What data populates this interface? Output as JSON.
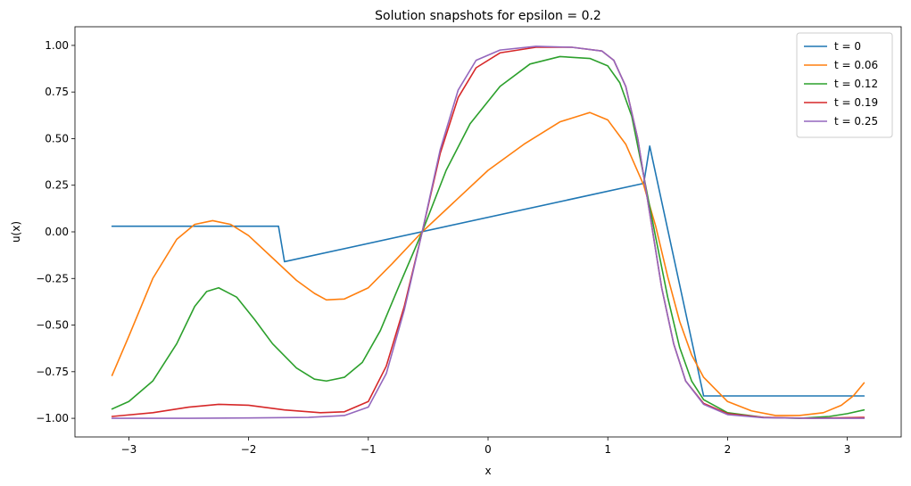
{
  "chart_data": {
    "type": "line",
    "title": "Solution snapshots for epsilon = 0.2",
    "xlabel": "x",
    "ylabel": "u(x)",
    "xlim": [
      -3.45,
      3.45
    ],
    "ylim": [
      -1.1,
      1.1
    ],
    "xticks": [
      -3,
      -2,
      -1,
      0,
      1,
      2,
      3
    ],
    "xtick_labels": [
      "−3",
      "−2",
      "−1",
      "0",
      "1",
      "2",
      "3"
    ],
    "yticks": [
      -1.0,
      -0.75,
      -0.5,
      -0.25,
      0.0,
      0.25,
      0.5,
      0.75,
      1.0
    ],
    "ytick_labels": [
      "−1.00",
      "−0.75",
      "−0.50",
      "−0.25",
      "0.00",
      "0.25",
      "0.50",
      "0.75",
      "1.00"
    ],
    "grid": false,
    "legend_position": "top-right",
    "series": [
      {
        "name": "t = 0",
        "color": "#1f77b4",
        "points": [
          [
            -3.14,
            0.03
          ],
          [
            -1.75,
            0.03
          ],
          [
            -1.7,
            -0.16
          ],
          [
            1.3,
            0.26
          ],
          [
            1.35,
            0.46
          ],
          [
            1.8,
            -0.88
          ],
          [
            3.14,
            -0.88
          ]
        ]
      },
      {
        "name": "t = 0.06",
        "color": "#ff7f0e",
        "points": [
          [
            -3.14,
            -0.77
          ],
          [
            -3.0,
            -0.56
          ],
          [
            -2.8,
            -0.25
          ],
          [
            -2.6,
            -0.04
          ],
          [
            -2.45,
            0.04
          ],
          [
            -2.3,
            0.06
          ],
          [
            -2.15,
            0.04
          ],
          [
            -2.0,
            -0.02
          ],
          [
            -1.8,
            -0.14
          ],
          [
            -1.6,
            -0.26
          ],
          [
            -1.45,
            -0.33
          ],
          [
            -1.35,
            -0.365
          ],
          [
            -1.2,
            -0.36
          ],
          [
            -1.0,
            -0.3
          ],
          [
            -0.8,
            -0.17
          ],
          [
            -0.55,
            0.0
          ],
          [
            -0.3,
            0.15
          ],
          [
            0.0,
            0.33
          ],
          [
            0.3,
            0.47
          ],
          [
            0.6,
            0.59
          ],
          [
            0.85,
            0.64
          ],
          [
            1.0,
            0.6
          ],
          [
            1.15,
            0.47
          ],
          [
            1.3,
            0.25
          ],
          [
            1.4,
            0.03
          ],
          [
            1.5,
            -0.24
          ],
          [
            1.6,
            -0.48
          ],
          [
            1.7,
            -0.66
          ],
          [
            1.8,
            -0.78
          ],
          [
            2.0,
            -0.91
          ],
          [
            2.2,
            -0.96
          ],
          [
            2.4,
            -0.985
          ],
          [
            2.6,
            -0.985
          ],
          [
            2.8,
            -0.97
          ],
          [
            2.95,
            -0.93
          ],
          [
            3.05,
            -0.88
          ],
          [
            3.14,
            -0.81
          ]
        ]
      },
      {
        "name": "t = 0.12",
        "color": "#2ca02c",
        "points": [
          [
            -3.14,
            -0.95
          ],
          [
            -3.0,
            -0.91
          ],
          [
            -2.8,
            -0.8
          ],
          [
            -2.6,
            -0.6
          ],
          [
            -2.45,
            -0.4
          ],
          [
            -2.35,
            -0.32
          ],
          [
            -2.25,
            -0.3
          ],
          [
            -2.1,
            -0.35
          ],
          [
            -1.95,
            -0.47
          ],
          [
            -1.8,
            -0.6
          ],
          [
            -1.6,
            -0.73
          ],
          [
            -1.45,
            -0.79
          ],
          [
            -1.35,
            -0.8
          ],
          [
            -1.2,
            -0.78
          ],
          [
            -1.05,
            -0.7
          ],
          [
            -0.9,
            -0.53
          ],
          [
            -0.75,
            -0.3
          ],
          [
            -0.55,
            0.0
          ],
          [
            -0.35,
            0.33
          ],
          [
            -0.15,
            0.58
          ],
          [
            0.1,
            0.78
          ],
          [
            0.35,
            0.9
          ],
          [
            0.6,
            0.94
          ],
          [
            0.85,
            0.93
          ],
          [
            1.0,
            0.89
          ],
          [
            1.1,
            0.8
          ],
          [
            1.2,
            0.62
          ],
          [
            1.3,
            0.3
          ],
          [
            1.4,
            -0.03
          ],
          [
            1.5,
            -0.35
          ],
          [
            1.6,
            -0.62
          ],
          [
            1.7,
            -0.8
          ],
          [
            1.8,
            -0.9
          ],
          [
            2.0,
            -0.97
          ],
          [
            2.3,
            -0.995
          ],
          [
            2.6,
            -1.0
          ],
          [
            2.85,
            -0.99
          ],
          [
            3.0,
            -0.975
          ],
          [
            3.14,
            -0.955
          ]
        ]
      },
      {
        "name": "t = 0.19",
        "color": "#d62728",
        "points": [
          [
            -3.14,
            -0.99
          ],
          [
            -2.8,
            -0.97
          ],
          [
            -2.5,
            -0.94
          ],
          [
            -2.25,
            -0.925
          ],
          [
            -2.0,
            -0.93
          ],
          [
            -1.7,
            -0.955
          ],
          [
            -1.4,
            -0.97
          ],
          [
            -1.2,
            -0.965
          ],
          [
            -1.0,
            -0.91
          ],
          [
            -0.85,
            -0.72
          ],
          [
            -0.7,
            -0.4
          ],
          [
            -0.55,
            0.0
          ],
          [
            -0.4,
            0.42
          ],
          [
            -0.25,
            0.72
          ],
          [
            -0.1,
            0.88
          ],
          [
            0.1,
            0.96
          ],
          [
            0.4,
            0.99
          ],
          [
            0.7,
            0.99
          ],
          [
            0.95,
            0.97
          ],
          [
            1.05,
            0.92
          ],
          [
            1.15,
            0.78
          ],
          [
            1.25,
            0.5
          ],
          [
            1.35,
            0.1
          ],
          [
            1.45,
            -0.3
          ],
          [
            1.55,
            -0.6
          ],
          [
            1.65,
            -0.8
          ],
          [
            1.8,
            -0.92
          ],
          [
            2.0,
            -0.975
          ],
          [
            2.3,
            -0.995
          ],
          [
            2.7,
            -1.0
          ],
          [
            3.14,
            -0.995
          ]
        ]
      },
      {
        "name": "t = 0.25",
        "color": "#9467bd",
        "points": [
          [
            -3.14,
            -1.0
          ],
          [
            -2.5,
            -1.0
          ],
          [
            -2.0,
            -0.998
          ],
          [
            -1.5,
            -0.995
          ],
          [
            -1.2,
            -0.985
          ],
          [
            -1.0,
            -0.94
          ],
          [
            -0.85,
            -0.76
          ],
          [
            -0.7,
            -0.42
          ],
          [
            -0.55,
            0.0
          ],
          [
            -0.4,
            0.44
          ],
          [
            -0.25,
            0.76
          ],
          [
            -0.1,
            0.92
          ],
          [
            0.1,
            0.975
          ],
          [
            0.4,
            0.995
          ],
          [
            0.7,
            0.99
          ],
          [
            0.95,
            0.97
          ],
          [
            1.05,
            0.92
          ],
          [
            1.15,
            0.78
          ],
          [
            1.25,
            0.5
          ],
          [
            1.35,
            0.1
          ],
          [
            1.45,
            -0.3
          ],
          [
            1.55,
            -0.6
          ],
          [
            1.65,
            -0.8
          ],
          [
            1.8,
            -0.925
          ],
          [
            2.0,
            -0.98
          ],
          [
            2.3,
            -0.997
          ],
          [
            2.7,
            -1.0
          ],
          [
            3.14,
            -1.0
          ]
        ]
      }
    ]
  }
}
